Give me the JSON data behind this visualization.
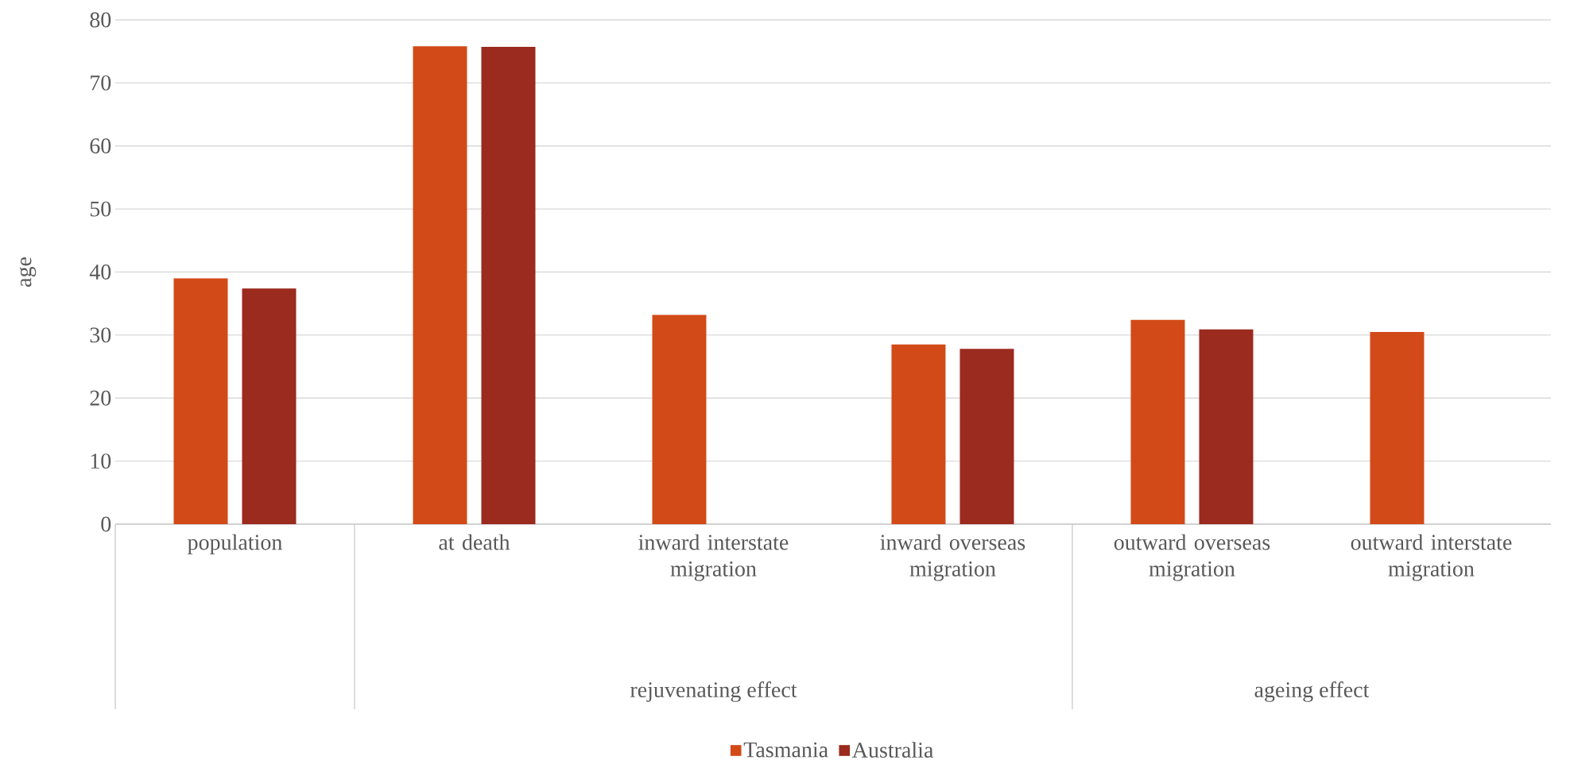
{
  "chart_data": {
    "type": "bar",
    "ylabel": "age",
    "categories": [
      "population",
      "at death",
      "inward interstate migration",
      "inward overseas migration",
      "outward overseas migration",
      "outward interstate migration"
    ],
    "series": [
      {
        "name": "Tasmania",
        "color": "#d24a17",
        "values": [
          39,
          75.8,
          33.2,
          28.5,
          32.4,
          30.5
        ]
      },
      {
        "name": "Australia",
        "color": "#9b2a1f",
        "values": [
          37.4,
          75.7,
          null,
          27.8,
          30.9,
          null
        ]
      }
    ],
    "ylim": [
      0,
      80
    ],
    "yticks": [
      0,
      10,
      20,
      30,
      40,
      50,
      60,
      70,
      80
    ],
    "grid": "y",
    "legend": "bottom",
    "annotations": [
      "rejuvenating effect",
      "ageing effect"
    ]
  }
}
